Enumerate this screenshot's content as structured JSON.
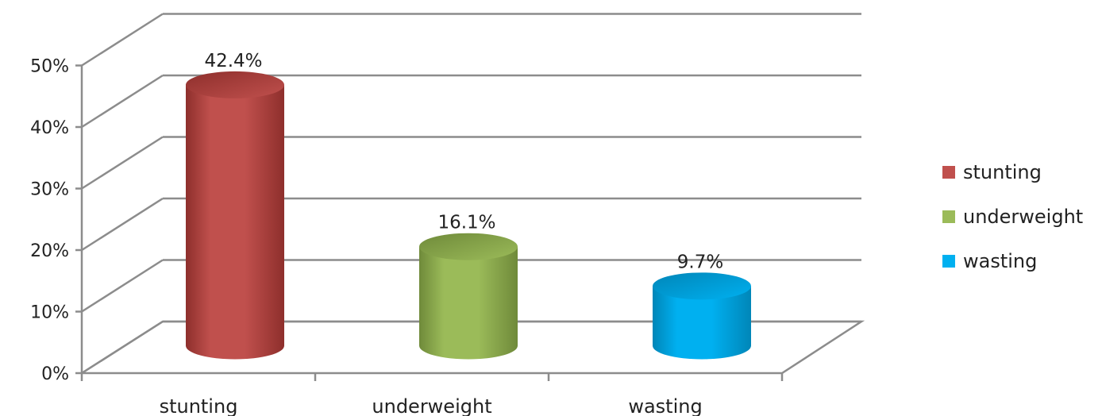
{
  "chart_data": {
    "type": "bar",
    "categories": [
      "stunting",
      "underweight",
      "wasting"
    ],
    "values": [
      42.4,
      16.1,
      9.7
    ],
    "value_labels": [
      "42.4%",
      "16.1%",
      "9.7%"
    ],
    "ylim": [
      0,
      50
    ],
    "yticks": [
      0,
      10,
      20,
      30,
      40,
      50
    ],
    "ytick_labels": [
      "0%",
      "10%",
      "20%",
      "30%",
      "40%",
      "50%"
    ],
    "grid": true,
    "style": "3d-cylinder",
    "legend": {
      "placement": "right",
      "entries": [
        "stunting",
        "underweight",
        "wasting"
      ]
    },
    "colors": {
      "stunting": "#c0504d",
      "underweight": "#9bbb59",
      "wasting": "#00b0f0"
    },
    "colors_dark": {
      "stunting": "#8e2f2c",
      "underweight": "#6f8a3a",
      "wasting": "#0086b8"
    }
  }
}
